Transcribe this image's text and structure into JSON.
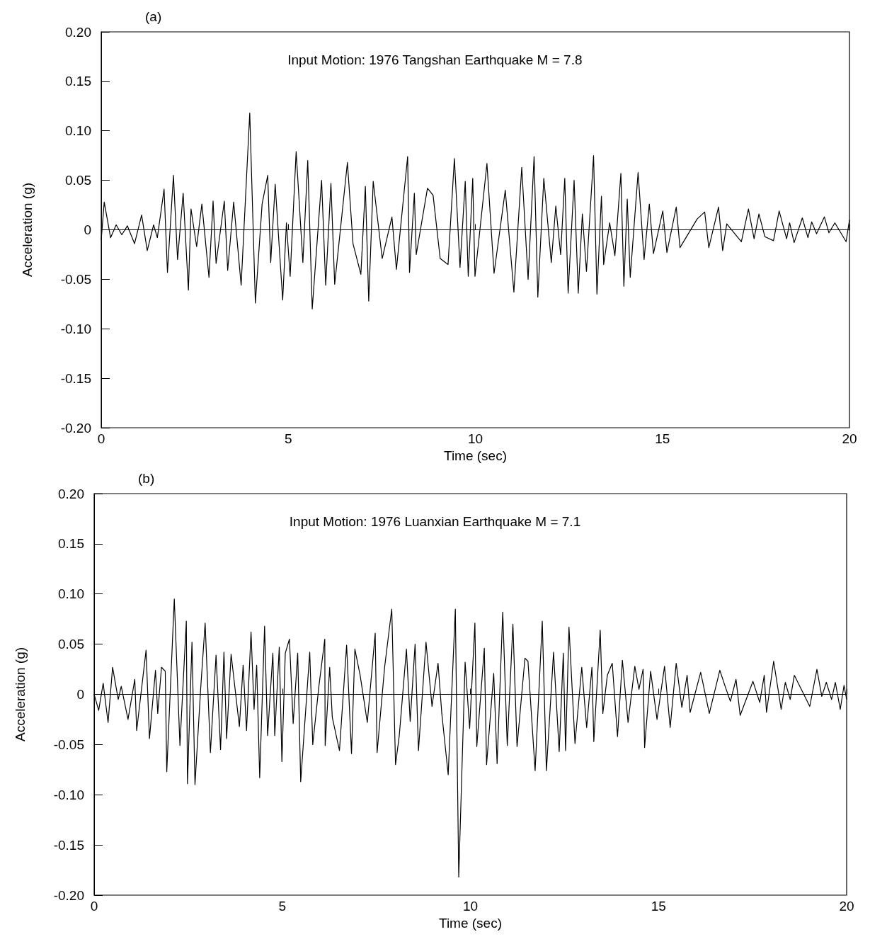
{
  "chart_data": [
    {
      "type": "line",
      "title": "(a)",
      "xlabel": "Time (sec)",
      "ylabel": "Acceleration (g)",
      "annotations": [
        "Input Motion: 1976 Tangshan Earthquake M = 7.8"
      ],
      "xlim": [
        0,
        20
      ],
      "xticks": [
        0,
        5,
        10,
        15,
        20
      ],
      "ylim": [
        -0.2,
        0.2
      ],
      "yticks": [
        {
          "value": -0.2,
          "label": "-0.20"
        },
        -0.15,
        {
          "value": -0.1,
          "label": "-0.10"
        },
        -0.05,
        0,
        0.05,
        {
          "value": 0.1,
          "label": "0.10"
        },
        0.15,
        {
          "value": 0.2,
          "label": "0.20"
        }
      ],
      "grid": false,
      "marker": "none",
      "line_style": "solid",
      "ref_lines": [
        {
          "axis": "y",
          "value": 0,
          "color": "#000000"
        }
      ],
      "series": [
        {
          "color": "#000000",
          "x": [
            0,
            0.08,
            0.25,
            0.4,
            0.55,
            0.7,
            0.89,
            1.08,
            1.23,
            1.4,
            1.5,
            1.68,
            1.77,
            1.93,
            2.04,
            2.19,
            2.33,
            2.4,
            2.55,
            2.69,
            2.88,
            2.99,
            3.07,
            3.29,
            3.38,
            3.54,
            3.74,
            3.97,
            4.12,
            4.3,
            4.45,
            4.53,
            4.65,
            4.85,
            4.95,
            5.05,
            5.21,
            5.39,
            5.52,
            5.64,
            5.89,
            6.0,
            6.14,
            6.24,
            6.58,
            6.73,
            6.94,
            7.06,
            7.15,
            7.27,
            7.51,
            7.77,
            7.89,
            8.19,
            8.24,
            8.37,
            8.42,
            8.72,
            8.87,
            9.06,
            9.27,
            9.44,
            9.59,
            9.73,
            9.81,
            9.93,
            9.99,
            10.31,
            10.5,
            10.8,
            11.03,
            11.24,
            11.41,
            11.57,
            11.67,
            11.83,
            12.03,
            12.15,
            12.28,
            12.39,
            12.48,
            12.64,
            12.75,
            12.86,
            12.97,
            13.16,
            13.25,
            13.37,
            13.43,
            13.59,
            13.73,
            13.89,
            13.97,
            14.06,
            14.14,
            14.35,
            14.51,
            14.65,
            14.76,
            15.01,
            15.12,
            15.37,
            15.47,
            15.93,
            16.13,
            16.24,
            16.5,
            16.61,
            16.72,
            17.11,
            17.3,
            17.45,
            17.58,
            17.74,
            17.97,
            18.12,
            18.32,
            18.4,
            18.52,
            18.74,
            18.89,
            18.99,
            19.12,
            19.33,
            19.45,
            19.61,
            19.91,
            20
          ],
          "values": [
            -0.01,
            0.028,
            -0.008,
            0.005,
            -0.005,
            0.004,
            -0.014,
            0.015,
            -0.021,
            0.005,
            -0.008,
            0.041,
            -0.043,
            0.055,
            -0.03,
            0.037,
            -0.061,
            0.021,
            -0.017,
            0.026,
            -0.048,
            0.029,
            -0.034,
            0.029,
            -0.041,
            0.028,
            -0.056,
            0.118,
            -0.074,
            0.026,
            0.055,
            -0.033,
            0.046,
            -0.071,
            0.007,
            -0.047,
            0.079,
            -0.033,
            0.07,
            -0.08,
            0.05,
            -0.056,
            0.047,
            -0.055,
            0.068,
            -0.014,
            -0.045,
            0.044,
            -0.072,
            0.049,
            -0.029,
            0.013,
            -0.04,
            0.074,
            -0.043,
            0.037,
            -0.025,
            0.042,
            0.035,
            -0.029,
            -0.035,
            0.072,
            -0.038,
            0.049,
            -0.047,
            0.052,
            -0.047,
            0.067,
            -0.044,
            0.04,
            -0.063,
            0.063,
            -0.05,
            0.074,
            -0.068,
            0.052,
            -0.033,
            0.024,
            -0.025,
            0.052,
            -0.064,
            0.05,
            -0.064,
            0.016,
            -0.042,
            0.075,
            -0.065,
            0.034,
            -0.035,
            0.007,
            -0.026,
            0.057,
            -0.057,
            0.031,
            -0.048,
            0.058,
            -0.03,
            0.026,
            -0.024,
            0.019,
            -0.023,
            0.023,
            -0.018,
            0.011,
            0.018,
            -0.018,
            0.023,
            -0.021,
            0.006,
            -0.012,
            0.021,
            -0.009,
            0.016,
            -0.007,
            -0.011,
            0.019,
            -0.009,
            0.007,
            -0.013,
            0.012,
            -0.008,
            0.008,
            -0.004,
            0.013,
            -0.003,
            0.007,
            -0.012,
            0.01
          ]
        }
      ]
    },
    {
      "type": "line",
      "title": "(b)",
      "xlabel": "Time (sec)",
      "ylabel": "Acceleration (g)",
      "annotations": [
        "Input Motion: 1976 Luanxian Earthquake M = 7.1"
      ],
      "xlim": [
        0,
        20
      ],
      "xticks": [
        0,
        5,
        10,
        15,
        20
      ],
      "ylim": [
        -0.2,
        0.2
      ],
      "yticks": [
        {
          "value": -0.2,
          "label": "-0.20"
        },
        -0.15,
        {
          "value": -0.1,
          "label": "-0.10"
        },
        -0.05,
        0,
        0.05,
        {
          "value": 0.1,
          "label": "0.10"
        },
        0.15,
        {
          "value": 0.2,
          "label": "0.20"
        }
      ],
      "grid": false,
      "marker": "none",
      "line_style": "solid",
      "ref_lines": [
        {
          "axis": "y",
          "value": 0,
          "color": "#000000"
        }
      ],
      "series": [
        {
          "color": "#000000",
          "x": [
            0,
            0.12,
            0.24,
            0.37,
            0.49,
            0.64,
            0.72,
            0.9,
            1.08,
            1.13,
            1.38,
            1.47,
            1.63,
            1.69,
            1.79,
            1.89,
            1.93,
            2.13,
            2.28,
            2.45,
            2.48,
            2.6,
            2.68,
            2.83,
            2.95,
            3.09,
            3.24,
            3.36,
            3.45,
            3.52,
            3.64,
            3.86,
            3.96,
            4.05,
            4.17,
            4.25,
            4.32,
            4.4,
            4.53,
            4.61,
            4.75,
            4.8,
            4.92,
            4.99,
            5.08,
            5.19,
            5.29,
            5.41,
            5.49,
            5.73,
            5.81,
            5.97,
            6.13,
            6.14,
            6.26,
            6.33,
            6.52,
            6.71,
            6.84,
            6.93,
            7.07,
            7.26,
            7.47,
            7.52,
            7.72,
            7.91,
            8.01,
            8.11,
            8.3,
            8.4,
            8.53,
            8.62,
            8.82,
            8.98,
            9.14,
            9.24,
            9.41,
            9.6,
            9.69,
            9.86,
            9.98,
            10.12,
            10.17,
            10.37,
            10.43,
            10.62,
            10.71,
            10.86,
            10.98,
            11.13,
            11.24,
            11.45,
            11.53,
            11.72,
            11.91,
            12.02,
            12.21,
            12.36,
            12.47,
            12.53,
            12.62,
            12.78,
            12.96,
            13.09,
            13.23,
            13.28,
            13.45,
            13.52,
            13.64,
            13.77,
            13.91,
            14.04,
            14.19,
            14.37,
            14.48,
            14.59,
            14.63,
            14.79,
            14.96,
            15.16,
            15.31,
            15.47,
            15.62,
            15.76,
            15.84,
            16.12,
            16.35,
            16.63,
            16.78,
            16.91,
            17.06,
            17.17,
            17.51,
            17.69,
            17.81,
            17.87,
            18.06,
            18.26,
            18.37,
            18.5,
            18.61,
            19.02,
            19.21,
            19.34,
            19.46,
            19.6,
            19.7,
            19.83,
            19.93,
            20
          ],
          "values": [
            0,
            -0.016,
            0.011,
            -0.028,
            0.027,
            -0.005,
            0.008,
            -0.025,
            0.015,
            -0.036,
            0.044,
            -0.044,
            0.024,
            -0.019,
            0.027,
            0.023,
            -0.077,
            0.095,
            -0.051,
            0.073,
            -0.089,
            0.052,
            -0.09,
            0.005,
            0.071,
            -0.058,
            0.039,
            -0.055,
            0.042,
            -0.044,
            0.04,
            -0.032,
            0.029,
            -0.036,
            0.062,
            -0.015,
            0.029,
            -0.083,
            0.068,
            -0.041,
            0.041,
            -0.041,
            0.047,
            -0.067,
            0.041,
            0.055,
            -0.029,
            0.041,
            -0.087,
            0.042,
            -0.05,
            0.007,
            0.055,
            -0.051,
            0.027,
            -0.023,
            -0.056,
            0.049,
            -0.059,
            0.045,
            0.019,
            -0.028,
            0.061,
            -0.058,
            0.027,
            0.085,
            -0.07,
            -0.041,
            0.045,
            -0.027,
            0.05,
            -0.056,
            0.052,
            -0.012,
            0.031,
            -0.019,
            -0.08,
            0.085,
            -0.182,
            0.032,
            -0.034,
            0.071,
            -0.052,
            0.046,
            -0.07,
            0.021,
            -0.069,
            0.082,
            -0.051,
            0.07,
            -0.052,
            0.036,
            0.033,
            -0.076,
            0.073,
            -0.076,
            0.042,
            -0.057,
            0.041,
            -0.056,
            0.067,
            -0.049,
            0.027,
            -0.033,
            0.027,
            -0.047,
            0.064,
            -0.019,
            0.019,
            0.031,
            -0.042,
            0.034,
            -0.028,
            0.028,
            0.005,
            0.025,
            -0.053,
            0.023,
            -0.025,
            0.028,
            -0.033,
            0.031,
            -0.013,
            0.019,
            -0.018,
            0.022,
            -0.019,
            0.024,
            0.007,
            -0.007,
            0.015,
            -0.021,
            0.013,
            -0.008,
            0.019,
            -0.018,
            0.033,
            -0.015,
            0.012,
            -0.005,
            0.019,
            -0.012,
            0.025,
            -0.002,
            0.012,
            -0.005,
            0.012,
            -0.015,
            0.009,
            -0.005
          ]
        }
      ]
    }
  ]
}
